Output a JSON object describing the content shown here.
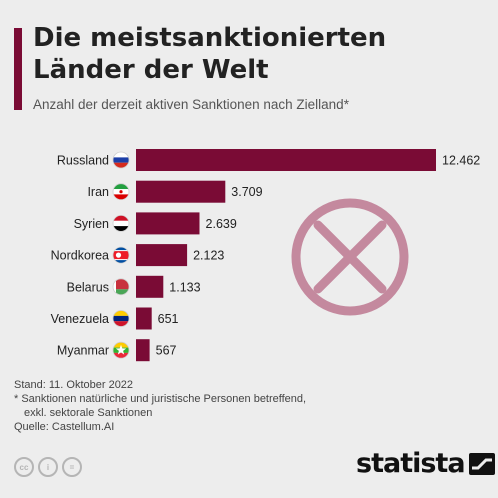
{
  "header": {
    "title_line1": "Die meistsanktionierten",
    "title_line2": "Länder der Welt",
    "subtitle": "Anzahl der derzeit aktiven Sanktionen nach Zielland*"
  },
  "chart_data": {
    "type": "bar",
    "orientation": "horizontal",
    "categories": [
      "Russland",
      "Iran",
      "Syrien",
      "Nordkorea",
      "Belarus",
      "Venezuela",
      "Myanmar"
    ],
    "values": [
      12462,
      3709,
      2639,
      2123,
      1133,
      651,
      567
    ],
    "value_labels": [
      "12.462",
      "3.709",
      "2.639",
      "2.123",
      "1.133",
      "651",
      "567"
    ],
    "bar_color": "#7a0b35",
    "title": "Die meistsanktionierten Länder der Welt",
    "subtitle": "Anzahl der derzeit aktiven Sanktionen nach Zielland*",
    "flag_icons": [
      "russia-flag-icon",
      "iran-flag-icon",
      "syria-flag-icon",
      "north-korea-flag-icon",
      "belarus-flag-icon",
      "venezuela-flag-icon",
      "myanmar-flag-icon"
    ]
  },
  "decoration": {
    "icon": "cross-circle-icon",
    "color": "#c4899e"
  },
  "footer": {
    "stand": "Stand: 11. Oktober 2022",
    "note_line1": "* Sanktionen natürliche und juristische Personen betreffend,",
    "note_line2": "exkl. sektorale Sanktionen",
    "source": "Quelle: Castellum.AI",
    "license_icons": [
      "cc-icon",
      "by-icon",
      "nd-icon"
    ],
    "brand": "statista"
  }
}
